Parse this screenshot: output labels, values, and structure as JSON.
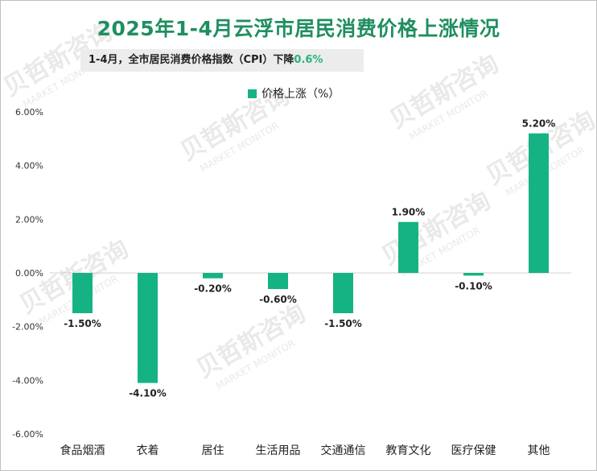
{
  "title": "2025年1-4月云浮市居民消费价格上涨情况",
  "note": {
    "text": "1-4月，全市居民消费价格指数（CPI）下降",
    "highlight": "0.6%"
  },
  "watermark": {
    "cn": "贝哲斯咨询",
    "en": "MARKET MONITOR"
  },
  "colors": {
    "bar": "#15b383",
    "title": "#1f8f5f",
    "highlight": "#27b37a"
  },
  "chart_data": {
    "type": "bar",
    "title": "2025年1-4月云浮市居民消费价格上涨情况",
    "categories": [
      "食品烟酒",
      "衣着",
      "居住",
      "生活用品",
      "交通通信",
      "教育文化",
      "医疗保健",
      "其他"
    ],
    "series": [
      {
        "name": "价格上涨（%）",
        "values": [
          -1.5,
          -4.1,
          -0.2,
          -0.6,
          -1.5,
          1.9,
          -0.1,
          5.2
        ]
      }
    ],
    "data_labels": [
      "-1.50%",
      "-4.10%",
      "-0.20%",
      "-0.60%",
      "-1.50%",
      "1.90%",
      "-0.10%",
      "5.20%"
    ],
    "y_ticks": [
      6,
      4,
      2,
      0,
      -2,
      -4,
      -6
    ],
    "y_tick_labels": [
      "6.00%",
      "4.00%",
      "2.00%",
      "0.00%",
      "-2.00%",
      "-4.00%",
      "-6.00%"
    ],
    "ylim": [
      -6,
      6
    ],
    "xlabel": "",
    "ylabel": "",
    "grid": false,
    "legend": "top"
  }
}
